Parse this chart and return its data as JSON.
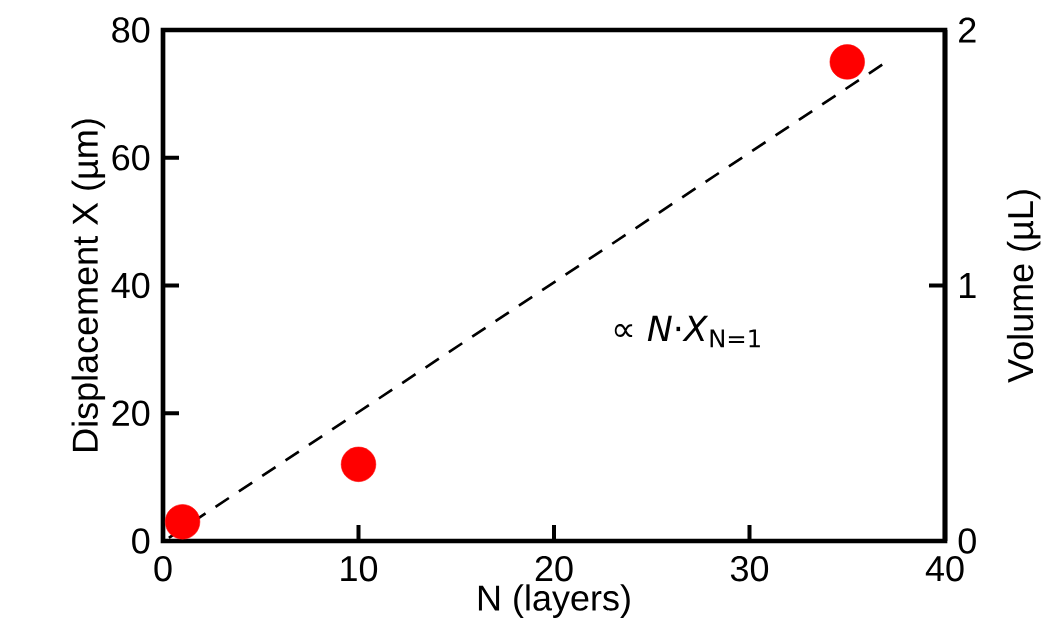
{
  "chart_data": {
    "type": "scatter",
    "xlabel": "N (layers)",
    "ylabel": "Displacement X (µm)",
    "y2label": "Volume (µL)",
    "xlim": [
      0,
      40
    ],
    "xticks": [
      0,
      10,
      20,
      30,
      40
    ],
    "ylim": [
      0,
      80
    ],
    "yticks": [
      0,
      20,
      40,
      60,
      80
    ],
    "y2lim": [
      0,
      2
    ],
    "y2ticks": [
      0,
      1,
      2
    ],
    "grid": false,
    "annotations": [
      "∝ *N*·*X*$_{N=1}$"
    ],
    "series": [
      {
        "color": "#ff0000",
        "marker": "circle",
        "x": [
          1,
          10,
          35
        ],
        "values": [
          3,
          12,
          75
        ]
      },
      {
        "type": "line",
        "color": "#000000",
        "line_style": "dashed",
        "marker": "none",
        "x": [
          0.3,
          37
        ],
        "values": [
          0.5,
          75
        ]
      }
    ]
  }
}
